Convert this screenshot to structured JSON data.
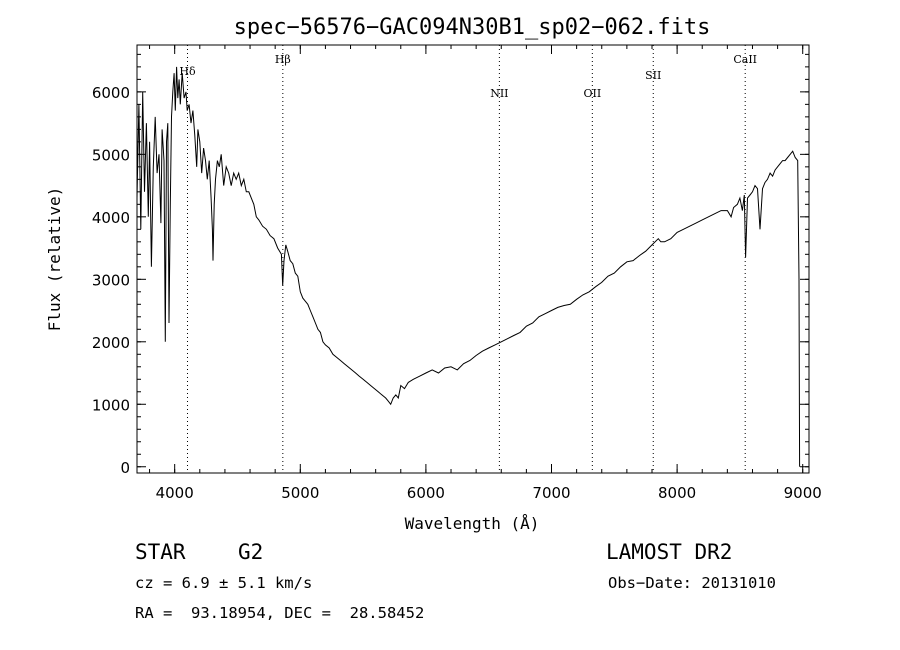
{
  "chart_data": {
    "type": "line",
    "title": "spec−56576−GAC094N30B1_sp02−062.fits",
    "xlabel": "Wavelength (Å)",
    "ylabel": "Flux (relative)",
    "xlim": [
      3700,
      9050
    ],
    "ylim": [
      -100,
      6750
    ],
    "xticks": [
      4000,
      5000,
      6000,
      7000,
      8000,
      9000
    ],
    "yticks": [
      0,
      1000,
      2000,
      3000,
      4000,
      5000,
      6000
    ],
    "grid": false,
    "series": [
      {
        "color": "#000000",
        "points": [
          [
            3700,
            4300
          ],
          [
            3715,
            5800
          ],
          [
            3730,
            3800
          ],
          [
            3745,
            6000
          ],
          [
            3760,
            4400
          ],
          [
            3775,
            5500
          ],
          [
            3790,
            4000
          ],
          [
            3800,
            5200
          ],
          [
            3815,
            3200
          ],
          [
            3830,
            4800
          ],
          [
            3845,
            5600
          ],
          [
            3860,
            4700
          ],
          [
            3875,
            5000
          ],
          [
            3890,
            3900
          ],
          [
            3900,
            5400
          ],
          [
            3915,
            4900
          ],
          [
            3925,
            2000
          ],
          [
            3935,
            5200
          ],
          [
            3945,
            5500
          ],
          [
            3955,
            2300
          ],
          [
            3965,
            4200
          ],
          [
            3975,
            5600
          ],
          [
            3985,
            6000
          ],
          [
            3995,
            6300
          ],
          [
            4005,
            5700
          ],
          [
            4015,
            6400
          ],
          [
            4025,
            5900
          ],
          [
            4035,
            6200
          ],
          [
            4045,
            5800
          ],
          [
            4060,
            6300
          ],
          [
            4075,
            5900
          ],
          [
            4090,
            6000
          ],
          [
            4100,
            5700
          ],
          [
            4115,
            5800
          ],
          [
            4130,
            5500
          ],
          [
            4145,
            5700
          ],
          [
            4160,
            5300
          ],
          [
            4175,
            4800
          ],
          [
            4185,
            5400
          ],
          [
            4200,
            5200
          ],
          [
            4215,
            4700
          ],
          [
            4230,
            5100
          ],
          [
            4245,
            4900
          ],
          [
            4260,
            4600
          ],
          [
            4275,
            4900
          ],
          [
            4290,
            4300
          ],
          [
            4300,
            3800
          ],
          [
            4305,
            3300
          ],
          [
            4315,
            4200
          ],
          [
            4325,
            4600
          ],
          [
            4340,
            4900
          ],
          [
            4355,
            4800
          ],
          [
            4370,
            5000
          ],
          [
            4390,
            4500
          ],
          [
            4410,
            4800
          ],
          [
            4430,
            4700
          ],
          [
            4450,
            4500
          ],
          [
            4470,
            4700
          ],
          [
            4490,
            4600
          ],
          [
            4510,
            4700
          ],
          [
            4530,
            4500
          ],
          [
            4550,
            4600
          ],
          [
            4570,
            4400
          ],
          [
            4590,
            4400
          ],
          [
            4610,
            4300
          ],
          [
            4630,
            4200
          ],
          [
            4650,
            4000
          ],
          [
            4670,
            3950
          ],
          [
            4700,
            3850
          ],
          [
            4730,
            3800
          ],
          [
            4760,
            3700
          ],
          [
            4790,
            3650
          ],
          [
            4820,
            3500
          ],
          [
            4850,
            3400
          ],
          [
            4860,
            2900
          ],
          [
            4870,
            3300
          ],
          [
            4885,
            3550
          ],
          [
            4900,
            3450
          ],
          [
            4920,
            3300
          ],
          [
            4940,
            3250
          ],
          [
            4960,
            3100
          ],
          [
            4980,
            3050
          ],
          [
            5000,
            2800
          ],
          [
            5020,
            2700
          ],
          [
            5040,
            2650
          ],
          [
            5060,
            2600
          ],
          [
            5080,
            2500
          ],
          [
            5100,
            2400
          ],
          [
            5120,
            2300
          ],
          [
            5140,
            2200
          ],
          [
            5160,
            2150
          ],
          [
            5180,
            2000
          ],
          [
            5200,
            1950
          ],
          [
            5230,
            1900
          ],
          [
            5260,
            1800
          ],
          [
            5290,
            1750
          ],
          [
            5320,
            1700
          ],
          [
            5350,
            1650
          ],
          [
            5380,
            1600
          ],
          [
            5410,
            1550
          ],
          [
            5440,
            1500
          ],
          [
            5470,
            1450
          ],
          [
            5500,
            1400
          ],
          [
            5530,
            1350
          ],
          [
            5560,
            1300
          ],
          [
            5590,
            1250
          ],
          [
            5620,
            1200
          ],
          [
            5650,
            1150
          ],
          [
            5680,
            1100
          ],
          [
            5700,
            1050
          ],
          [
            5720,
            1000
          ],
          [
            5740,
            1100
          ],
          [
            5760,
            1150
          ],
          [
            5780,
            1100
          ],
          [
            5800,
            1300
          ],
          [
            5830,
            1250
          ],
          [
            5860,
            1350
          ],
          [
            5900,
            1400
          ],
          [
            5950,
            1450
          ],
          [
            6000,
            1500
          ],
          [
            6050,
            1550
          ],
          [
            6100,
            1500
          ],
          [
            6150,
            1580
          ],
          [
            6200,
            1600
          ],
          [
            6250,
            1550
          ],
          [
            6300,
            1650
          ],
          [
            6350,
            1700
          ],
          [
            6400,
            1780
          ],
          [
            6450,
            1850
          ],
          [
            6500,
            1900
          ],
          [
            6550,
            1950
          ],
          [
            6600,
            2000
          ],
          [
            6650,
            2050
          ],
          [
            6700,
            2100
          ],
          [
            6750,
            2150
          ],
          [
            6800,
            2250
          ],
          [
            6850,
            2300
          ],
          [
            6900,
            2400
          ],
          [
            6950,
            2450
          ],
          [
            7000,
            2500
          ],
          [
            7050,
            2550
          ],
          [
            7100,
            2580
          ],
          [
            7150,
            2600
          ],
          [
            7200,
            2680
          ],
          [
            7250,
            2750
          ],
          [
            7300,
            2800
          ],
          [
            7350,
            2880
          ],
          [
            7400,
            2950
          ],
          [
            7450,
            3050
          ],
          [
            7500,
            3100
          ],
          [
            7550,
            3200
          ],
          [
            7600,
            3280
          ],
          [
            7650,
            3300
          ],
          [
            7700,
            3380
          ],
          [
            7750,
            3450
          ],
          [
            7800,
            3550
          ],
          [
            7850,
            3650
          ],
          [
            7870,
            3600
          ],
          [
            7900,
            3600
          ],
          [
            7950,
            3650
          ],
          [
            8000,
            3750
          ],
          [
            8050,
            3800
          ],
          [
            8100,
            3850
          ],
          [
            8150,
            3900
          ],
          [
            8200,
            3950
          ],
          [
            8250,
            4000
          ],
          [
            8300,
            4050
          ],
          [
            8350,
            4100
          ],
          [
            8400,
            4100
          ],
          [
            8430,
            4000
          ],
          [
            8450,
            4150
          ],
          [
            8480,
            4200
          ],
          [
            8500,
            4300
          ],
          [
            8520,
            4100
          ],
          [
            8535,
            4350
          ],
          [
            8545,
            3350
          ],
          [
            8560,
            4300
          ],
          [
            8580,
            4350
          ],
          [
            8600,
            4400
          ],
          [
            8620,
            4500
          ],
          [
            8640,
            4450
          ],
          [
            8660,
            3800
          ],
          [
            8680,
            4450
          ],
          [
            8700,
            4550
          ],
          [
            8720,
            4600
          ],
          [
            8740,
            4700
          ],
          [
            8760,
            4650
          ],
          [
            8780,
            4750
          ],
          [
            8800,
            4800
          ],
          [
            8820,
            4850
          ],
          [
            8840,
            4900
          ],
          [
            8860,
            4900
          ],
          [
            8880,
            4950
          ],
          [
            8900,
            5000
          ],
          [
            8920,
            5050
          ],
          [
            8940,
            4950
          ],
          [
            8960,
            4900
          ],
          [
            8970,
            3000
          ],
          [
            8975,
            0
          ]
        ]
      }
    ],
    "markers": [
      {
        "label": "Hδ",
        "x": 4102
      },
      {
        "label": "Hβ",
        "x": 4861
      },
      {
        "label": "NII",
        "x": 6585
      },
      {
        "label": "OII",
        "x": 7325
      },
      {
        "label": "SII",
        "x": 7810
      },
      {
        "label": "CaII",
        "x": 8542
      }
    ]
  },
  "info": {
    "class_label": "STAR",
    "subclass": "G2",
    "survey": "LAMOST DR2",
    "redshift": "cz = 6.9 ± 5.1 km/s",
    "obs_date": "Obs−Date: 20131010",
    "coords": "RA =  93.18954, DEC =  28.58452"
  }
}
